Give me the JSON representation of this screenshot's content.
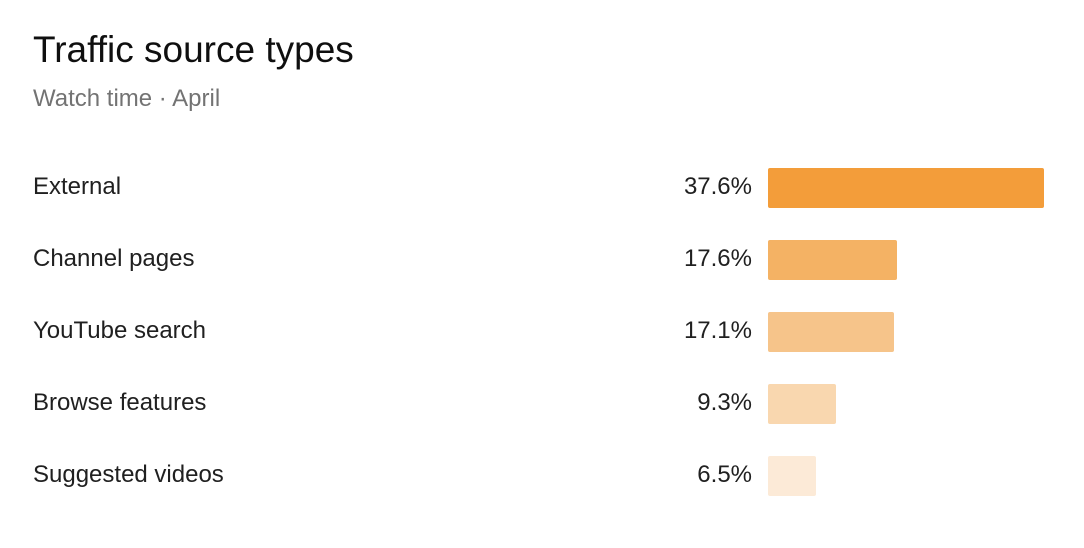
{
  "card": {
    "title": "Traffic source types",
    "subtitle": "Watch time · April"
  },
  "chart_data": {
    "type": "bar",
    "orientation": "horizontal",
    "title": "Traffic source types",
    "subtitle": "Watch time · April",
    "categories": [
      "External",
      "Channel pages",
      "YouTube search",
      "Browse features",
      "Suggested videos"
    ],
    "values": [
      37.6,
      17.6,
      17.1,
      9.3,
      6.5
    ],
    "value_labels": [
      "37.6%",
      "17.6%",
      "17.1%",
      "9.3%",
      "6.5%"
    ],
    "unit": "%",
    "max_value": 37.6,
    "colors": [
      "#f39d3a",
      "#f4b264",
      "#f6c48a",
      "#f9d7af",
      "#fcead7"
    ],
    "grid": false,
    "legend": "none"
  }
}
